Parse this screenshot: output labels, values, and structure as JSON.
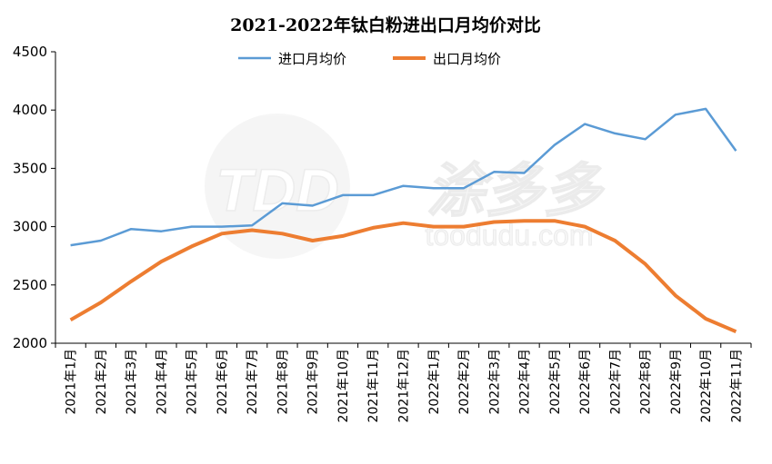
{
  "chart_data": {
    "type": "line",
    "title": "2021-2022年钛白粉进出口月均价对比",
    "categories": [
      "2021年1月",
      "2021年2月",
      "2021年3月",
      "2021年4月",
      "2021年5月",
      "2021年6月",
      "2021年7月",
      "2021年8月",
      "2021年9月",
      "2021年10月",
      "2021年11月",
      "2021年12月",
      "2022年1月",
      "2022年2月",
      "2022年3月",
      "2022年4月",
      "2022年5月",
      "2022年6月",
      "2022年7月",
      "2022年8月",
      "2022年9月",
      "2022年10月",
      "2022年11月"
    ],
    "series": [
      {
        "name": "进口月均价",
        "color": "#5b9bd5",
        "values": [
          2840,
          2880,
          2980,
          2960,
          3000,
          3000,
          3010,
          3200,
          3180,
          3270,
          3270,
          3350,
          3330,
          3330,
          3470,
          3460,
          3700,
          3880,
          3800,
          3750,
          3960,
          4010,
          3650
        ]
      },
      {
        "name": "出口月均价",
        "color": "#ed7d31",
        "values": [
          2200,
          2350,
          2530,
          2700,
          2830,
          2940,
          2970,
          2940,
          2880,
          2920,
          2990,
          3030,
          3000,
          3000,
          3040,
          3050,
          3050,
          3000,
          2880,
          2680,
          2410,
          2210,
          2100
        ]
      }
    ],
    "ylim": [
      2000,
      4500
    ],
    "yticks": [
      2000,
      2500,
      3000,
      3500,
      4000,
      4500
    ],
    "grid": false,
    "legend": "top-center"
  },
  "watermark": {
    "logo": "TDD",
    "name": "涂多多",
    "site": "toodudu.com"
  }
}
